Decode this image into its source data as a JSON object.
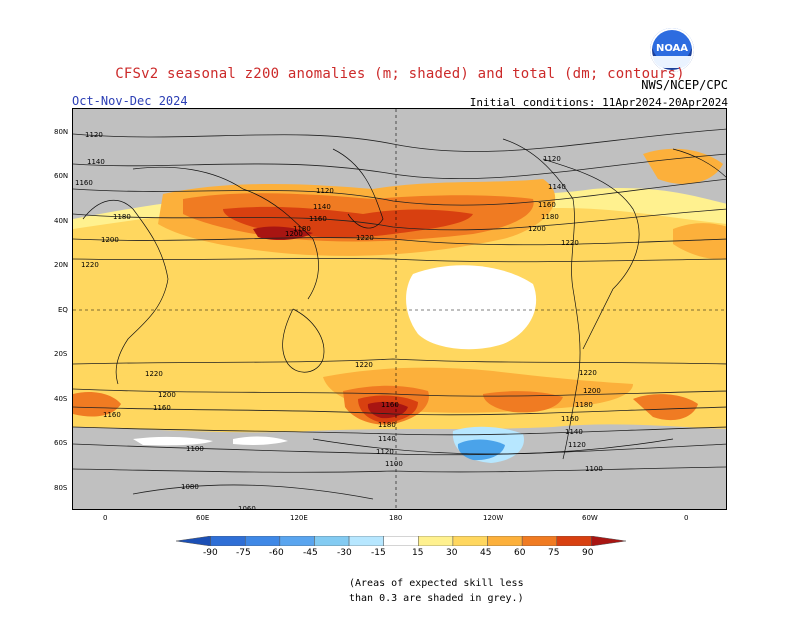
{
  "header": {
    "title": "CFSv2 seasonal z200 anomalies (m; shaded) and total (dm; contours)",
    "season": "Oct-Nov-Dec 2024",
    "agency": "NWS/NCEP/CPC",
    "initial_conditions": "Initial conditions: 11Apr2024-20Apr2024",
    "logo_text": "NOAA"
  },
  "map": {
    "lat_labels": [
      "80N",
      "60N",
      "40N",
      "20N",
      "EQ",
      "20S",
      "40S",
      "60S",
      "80S"
    ],
    "lon_labels": [
      "0",
      "60E",
      "120E",
      "180",
      "120W",
      "60W",
      "0"
    ],
    "contour_labels": [
      "1120",
      "1140",
      "1160",
      "1180",
      "1200",
      "1220",
      "1100",
      "1080",
      "1060"
    ],
    "colors": {
      "land_grey": "#c0c0c0",
      "ocean": "#ffffff",
      "pos_15": "#fff18f",
      "pos_30": "#ffd75f",
      "pos_45": "#fcb03b",
      "pos_60": "#f07b22",
      "pos_75": "#d84010",
      "pos_90": "#a81512",
      "neg_15": "#b7e7ff",
      "neg_30": "#83cbf2",
      "neg_45": "#4aa3ea"
    }
  },
  "colorbar": {
    "labels": [
      "-90",
      "-75",
      "-60",
      "-45",
      "-30",
      "-15",
      "15",
      "30",
      "45",
      "60",
      "75",
      "90"
    ],
    "colors": [
      "#1b4fb5",
      "#2f6fd6",
      "#3f88e6",
      "#5aa5ef",
      "#83cbf2",
      "#b7e7ff",
      "#ffffff",
      "#fff18f",
      "#ffd75f",
      "#fcb03b",
      "#f07b22",
      "#d84010",
      "#a81512"
    ]
  },
  "footnote": {
    "line1": "(Areas of expected skill less",
    "line2": "than 0.3 are shaded in grey.)"
  }
}
